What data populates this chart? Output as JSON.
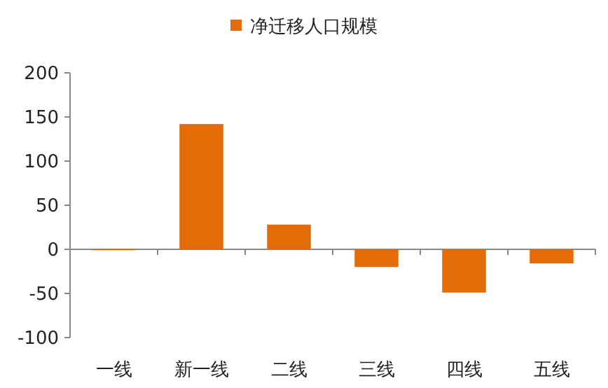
{
  "chart_data": {
    "type": "bar",
    "categories": [
      "一线",
      "新一线",
      "二线",
      "三线",
      "四线",
      "五线"
    ],
    "series": [
      {
        "name": "净迁移人口规模",
        "color": "#e36c09",
        "values": [
          -1,
          142,
          28,
          -20,
          -49,
          -16
        ]
      }
    ],
    "ylim": [
      -100,
      200
    ],
    "yticks": [
      -100,
      -50,
      0,
      50,
      100,
      150,
      200
    ],
    "legend": "top"
  }
}
